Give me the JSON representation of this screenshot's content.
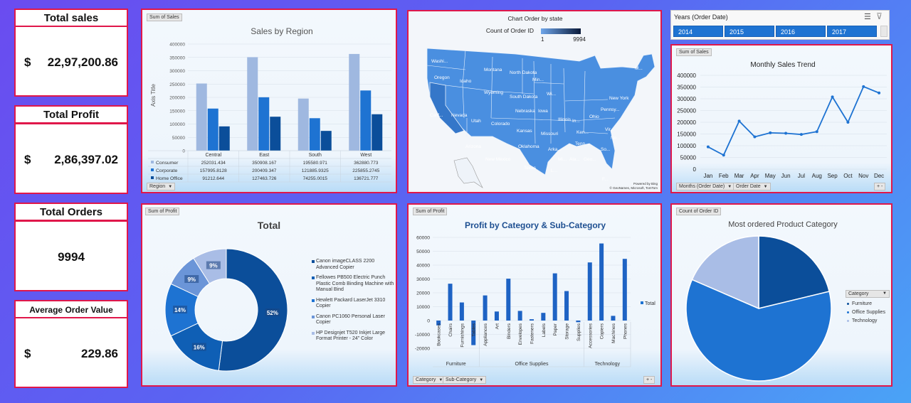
{
  "kpis": {
    "sales": {
      "title": "Total sales",
      "currency": "$",
      "value": "22,97,200.86"
    },
    "profit": {
      "title": "Total Profit",
      "currency": "$",
      "value": "2,86,397.02"
    },
    "orders": {
      "title": "Total Orders",
      "value": "9994"
    },
    "aov": {
      "title": "Average Order Value",
      "currency": "$",
      "value": "229.86"
    }
  },
  "colors": {
    "consumer": "#9fb8e0",
    "corporate": "#1e73d2",
    "home_office": "#0b4e9a",
    "map_fill": "#4a8fe0",
    "accent": "#1e73d2",
    "border": "#e0174a"
  },
  "region_panel": {
    "field_button": "Sum of Sales",
    "filter_button": "Region",
    "legend_swatches": [
      "#9fb8e0",
      "#1e73d2",
      "#0b4e9a"
    ]
  },
  "map_panel": {
    "title": "Chart Order by state",
    "legend_label": "Count of Order ID",
    "legend_min": "1",
    "legend_max": "9994",
    "credit1": "Powered by Bing",
    "credit2": "© GeoNames, Microsoft, TomTom",
    "states": [
      {
        "label": "Washi..."
      },
      {
        "label": "Oregon"
      },
      {
        "label": "Idaho"
      },
      {
        "label": "Montana"
      },
      {
        "label": "North Dakota"
      },
      {
        "label": "Min..."
      },
      {
        "label": "Wyoming"
      },
      {
        "label": "South Dakota"
      },
      {
        "label": "Wi..."
      },
      {
        "label": "Calif..."
      },
      {
        "label": "Nevada"
      },
      {
        "label": "Utah"
      },
      {
        "label": "Colorado"
      },
      {
        "label": "Nebraska"
      },
      {
        "label": "Iowa"
      },
      {
        "label": "Illinois"
      },
      {
        "label": "In..."
      },
      {
        "label": "Ohio"
      },
      {
        "label": "Pennsy..."
      },
      {
        "label": "New York"
      },
      {
        "label": "M..."
      },
      {
        "label": "Arizona"
      },
      {
        "label": "New Mexico"
      },
      {
        "label": "Kansas"
      },
      {
        "label": "Missouri"
      },
      {
        "label": "Oklahoma"
      },
      {
        "label": "Ken..."
      },
      {
        "label": "Vir..."
      },
      {
        "label": "No..."
      },
      {
        "label": "Tenn..."
      },
      {
        "label": "Arka..."
      },
      {
        "label": "Texas"
      },
      {
        "label": "Mi..."
      },
      {
        "label": "Ala..."
      },
      {
        "label": "Geo..."
      },
      {
        "label": "So..."
      },
      {
        "label": "L..."
      },
      {
        "label": "F..."
      }
    ]
  },
  "years_slicer": {
    "title": "Years (Order Date)",
    "years": [
      "2014",
      "2015",
      "2016",
      "2017"
    ]
  },
  "trend_panel": {
    "field_button": "Sum of Sales",
    "filter_buttons": [
      "Months (Order Date)",
      "Order Date"
    ],
    "plus_minus": "+ -"
  },
  "donut_panel": {
    "field_button": "Sum of Profit",
    "legend_swatches": [
      "#0b4e9a",
      "#0f5fb5",
      "#1e73d2",
      "#6b95d8",
      "#a9bde6"
    ]
  },
  "profit_panel": {
    "field_button": "Sum of Profit",
    "filter_buttons": [
      "Category",
      "Sub-Category"
    ],
    "legend": "Total",
    "plus_minus": "+ -"
  },
  "pie_panel": {
    "field_button": "Count of Order ID",
    "legend_title": "Category",
    "legend_colors": [
      "#0b4e9a",
      "#1e73d2",
      "#a9bde6"
    ]
  },
  "chart_data": [
    {
      "type": "bar",
      "title": "Sales by Region",
      "ylabel": "Axis Title",
      "categories": [
        "Central",
        "East",
        "South",
        "West"
      ],
      "ylim": [
        0,
        400000
      ],
      "yticks": [
        "0",
        "50000",
        "100000",
        "150000",
        "200000",
        "250000",
        "300000",
        "350000",
        "400000"
      ],
      "series": [
        {
          "name": "Consumer",
          "values": [
            252031.434,
            350908.167,
            195580.971,
            362880.773
          ],
          "labels": [
            "252031.434",
            "350908.167",
            "195580.971",
            "362880.773"
          ]
        },
        {
          "name": "Corporate",
          "values": [
            157995.8128,
            200409.347,
            121885.9325,
            225855.2745
          ],
          "labels": [
            "157995.8128",
            "200409.347",
            "121885.9325",
            "225855.2745"
          ]
        },
        {
          "name": "Home Office",
          "values": [
            91212.644,
            127463.726,
            74255.0015,
            136721.777
          ],
          "labels": [
            "91212.644",
            "127463.726",
            "74255.0015",
            "136721.777"
          ]
        }
      ]
    },
    {
      "type": "line",
      "title": "Monthly Sales Trend",
      "categories": [
        "Jan",
        "Feb",
        "Mar",
        "Apr",
        "May",
        "Jun",
        "Jul",
        "Aug",
        "Sep",
        "Oct",
        "Nov",
        "Dec"
      ],
      "ylim": [
        0,
        400000
      ],
      "yticks": [
        "0",
        "50000",
        "100000",
        "150000",
        "200000",
        "250000",
        "300000",
        "350000",
        "400000"
      ],
      "values": [
        95000,
        60000,
        205000,
        138000,
        155000,
        153000,
        148000,
        160000,
        308000,
        200000,
        352000,
        325000
      ]
    },
    {
      "type": "pie",
      "title": "Total",
      "categories": [
        "Canon imageCLASS 2200 Advanced Copier",
        "Fellowes PB500 Electric Punch Plastic Comb Binding Machine with Manual Bind",
        "Hewlett Packard LaserJet 3310 Copier",
        "Canon PC1060 Personal Laser Copier",
        "HP Designjet T520 Inkjet Large Format Printer - 24\" Color"
      ],
      "values": [
        52,
        16,
        14,
        9,
        9
      ],
      "labels": [
        "52%",
        "16%",
        "14%",
        "9%",
        "9%"
      ]
    },
    {
      "type": "bar",
      "title": "Profit by Category & Sub-Category",
      "groups": [
        {
          "name": "Furniture",
          "size": 4
        },
        {
          "name": "Office Supplies",
          "size": 9
        },
        {
          "name": "Technology",
          "size": 4
        }
      ],
      "categories": [
        "Bookcases",
        "Chairs",
        "Furnishings",
        "Tables",
        "Appliances",
        "Art",
        "Binders",
        "Envelopes",
        "Fasteners",
        "Labels",
        "Paper",
        "Storage",
        "Supplies",
        "Accessories",
        "Copiers",
        "Machines",
        "Phones"
      ],
      "series": [
        {
          "name": "Total",
          "values": [
            -3473,
            26590,
            13059,
            -17725,
            18138,
            6528,
            30222,
            6964,
            950,
            5546,
            34054,
            21279,
            -1189,
            41937,
            55618,
            3385,
            44516
          ]
        }
      ],
      "ylim": [
        -20000,
        60000
      ],
      "yticks": [
        "-20000",
        "-10000",
        "0",
        "10000",
        "20000",
        "30000",
        "40000",
        "50000",
        "60000"
      ]
    },
    {
      "type": "pie",
      "title": "Most ordered Product Category",
      "categories": [
        "Furniture",
        "Office Supplies",
        "Technology"
      ],
      "values": [
        2121,
        6026,
        1847
      ]
    }
  ]
}
